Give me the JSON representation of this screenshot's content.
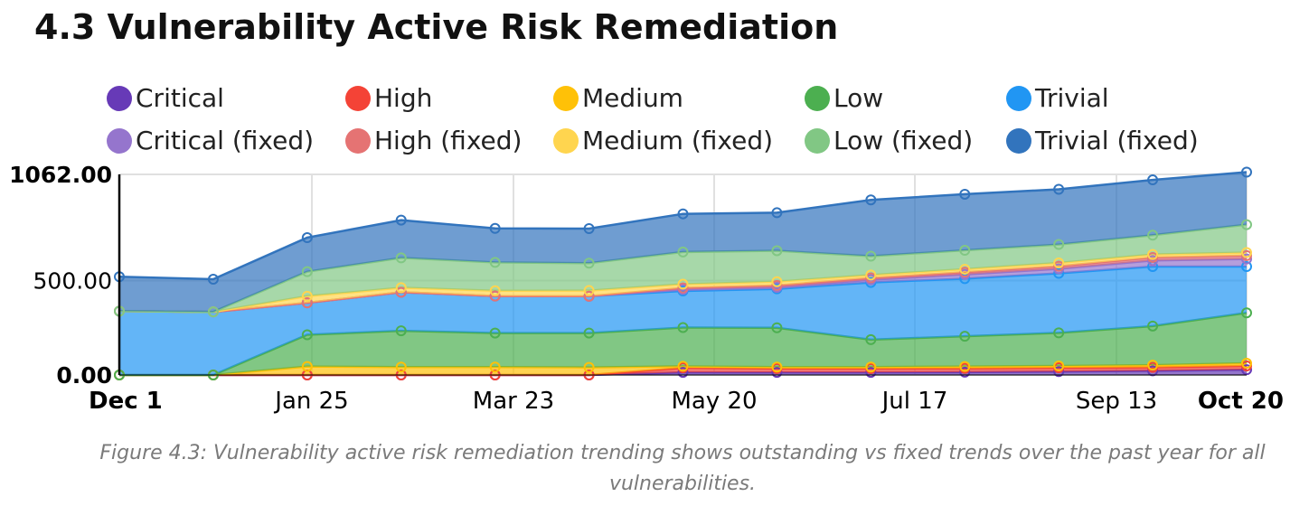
{
  "title": "4.3 Vulnerability Active Risk Remediation",
  "caption": "Figure 4.3: Vulnerability active risk remediation trending shows outstanding vs fixed trends over the past year for all vulnerabilities.",
  "chart_data": {
    "type": "area",
    "stacked": true,
    "x": [
      "Dec 1",
      "Dec 28",
      "Jan 25",
      "Feb 22",
      "Mar 23",
      "Apr 20",
      "May 20",
      "Jun 18",
      "Jul 17",
      "Aug 15",
      "Sep 13",
      "Oct 11",
      "Oct 20"
    ],
    "x_tick_labels": [
      "Dec 1",
      "Jan 25",
      "Mar 23",
      "May 20",
      "Jul 17",
      "Sep 13",
      "Oct 20"
    ],
    "y_tick_labels": [
      "0.00",
      "500.00",
      "1062.00"
    ],
    "y_tick_values": [
      0,
      500,
      1062
    ],
    "ylim": [
      0,
      1062
    ],
    "grid": true,
    "legend_position": "top",
    "series": [
      {
        "name": "Critical",
        "color": "#673ab7",
        "values": [
          0,
          0,
          0,
          0,
          0,
          0,
          14,
          14,
          14,
          15,
          18,
          22,
          28
        ]
      },
      {
        "name": "High",
        "color": "#f44336",
        "values": [
          0,
          0,
          0,
          0,
          0,
          0,
          24,
          20,
          20,
          20,
          20,
          18,
          20
        ]
      },
      {
        "name": "Medium",
        "color": "#ffc107",
        "values": [
          0,
          0,
          45,
          42,
          42,
          40,
          8,
          8,
          8,
          10,
          10,
          12,
          14
        ]
      },
      {
        "name": "Low",
        "color": "#4caf50",
        "values": [
          0,
          0,
          168,
          192,
          180,
          182,
          205,
          208,
          145,
          160,
          175,
          207,
          267
        ]
      },
      {
        "name": "Trivial",
        "color": "#2196f3",
        "values": [
          338,
          334,
          169,
          204,
          196,
          195,
          194,
          206,
          303,
          305,
          315,
          315,
          245
        ]
      },
      {
        "name": "Critical (fixed)",
        "color": "#9575cd",
        "values": [
          0,
          0,
          0,
          0,
          0,
          0,
          8,
          8,
          14,
          22,
          24,
          32,
          40
        ]
      },
      {
        "name": "High (fixed)",
        "color": "#e57373",
        "values": [
          0,
          0,
          0,
          0,
          0,
          0,
          8,
          10,
          10,
          12,
          14,
          16,
          18
        ]
      },
      {
        "name": "Medium (fixed)",
        "color": "#ffd54f",
        "values": [
          0,
          0,
          35,
          24,
          28,
          30,
          20,
          20,
          15,
          16,
          17,
          16,
          16
        ]
      },
      {
        "name": "Low (fixed)",
        "color": "#81c784",
        "values": [
          0,
          0,
          130,
          158,
          150,
          145,
          170,
          164,
          100,
          100,
          98,
          102,
          148
        ]
      },
      {
        "name": "Trivial (fixed)",
        "color": "#3274bd",
        "values": [
          182,
          173,
          180,
          200,
          180,
          183,
          202,
          201,
          298,
          297,
          292,
          293,
          278
        ]
      }
    ]
  }
}
